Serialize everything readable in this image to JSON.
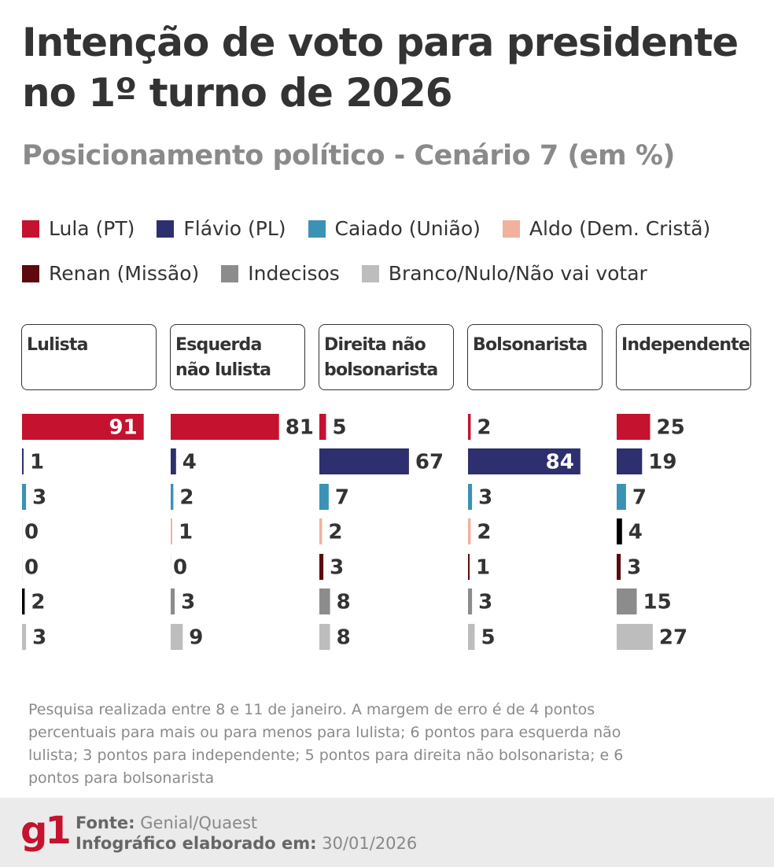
{
  "title": "Intenção de voto para presidente no 1º turno de 2026",
  "subtitle": "Posicionamento político - Cenário 7 (em %)",
  "chart_data": {
    "type": "bar",
    "orientation": "horizontal",
    "title": "Intenção de voto para presidente no 1º turno de 2026",
    "subtitle": "Posicionamento político - Cenário 7 (em %)",
    "legend": [
      {
        "name": "Lula (PT)",
        "color": "#c4122f"
      },
      {
        "name": "Flávio (PL)",
        "color": "#2e2f6e"
      },
      {
        "name": "Caiado (União)",
        "color": "#3a93b4"
      },
      {
        "name": "Aldo (Dem. Cristã)",
        "color": "#f2b09e"
      },
      {
        "name": "Renan (Missão)",
        "color": "#5c0a0f"
      },
      {
        "name": "Indecisos",
        "color": "#8c8c8c"
      },
      {
        "name": "Branco/Nulo/Não vai votar",
        "color": "#bdbdbd"
      }
    ],
    "legend_placement": "top",
    "groups": [
      {
        "name": "Lulista",
        "values": [
          91,
          1,
          3,
          0,
          0,
          2,
          3
        ],
        "colors": [
          "#c4122f",
          "#2e2f6e",
          "#3a93b4",
          "#f2b09e",
          "#5c0a0f",
          "#000000",
          "#bdbdbd"
        ]
      },
      {
        "name": "Esquerda\nnão lulista",
        "values": [
          81,
          4,
          2,
          1,
          0,
          3,
          9
        ],
        "colors": [
          "#c4122f",
          "#2e2f6e",
          "#3a93b4",
          "#f2b09e",
          "#5c0a0f",
          "#8c8c8c",
          "#bdbdbd"
        ]
      },
      {
        "name": "Direita não\nbolsonarista",
        "values": [
          5,
          67,
          7,
          2,
          3,
          8,
          8
        ],
        "colors": [
          "#c4122f",
          "#2e2f6e",
          "#3a93b4",
          "#f2b09e",
          "#5c0a0f",
          "#8c8c8c",
          "#bdbdbd"
        ]
      },
      {
        "name": "Bolsonarista",
        "values": [
          2,
          84,
          3,
          2,
          1,
          3,
          5
        ],
        "colors": [
          "#c4122f",
          "#2e2f6e",
          "#3a93b4",
          "#f2b09e",
          "#5c0a0f",
          "#8c8c8c",
          "#bdbdbd"
        ]
      },
      {
        "name": "Independente",
        "values": [
          25,
          19,
          7,
          4,
          3,
          15,
          27
        ],
        "colors": [
          "#c4122f",
          "#2e2f6e",
          "#3a93b4",
          "#000000",
          "#5c0a0f",
          "#8c8c8c",
          "#bdbdbd"
        ]
      }
    ],
    "xlim": [
      0,
      100
    ]
  },
  "note": "Pesquisa realizada entre 8 e 11 de janeiro. A margem de erro é de 4 pontos percentuais para mais ou para menos para lulista; 6 pontos para esquerda não lulista; 3 pontos para independente; 5 pontos para direita não bolsonarista; e 6 pontos para bolsonarista",
  "footer": {
    "logo": "g1",
    "source_label": "Fonte:",
    "source": "Genial/Quaest",
    "date_label": "Infográfico elaborado em:",
    "date": "30/01/2026"
  }
}
